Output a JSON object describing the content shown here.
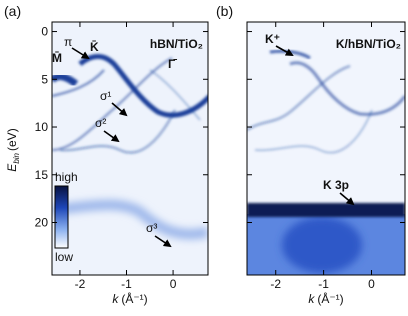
{
  "chart_data": [
    {
      "type": "heatmap",
      "panel_label": "(a)",
      "sample": "hBN/TiO₂",
      "xlim": [
        -2.6,
        0.75
      ],
      "ylim": [
        -1,
        25.5
      ],
      "y_inverted": true,
      "xticks": [
        -2,
        -1,
        0
      ],
      "yticks": [
        0,
        5,
        10,
        15,
        20
      ],
      "show_ytick_labels": true,
      "xlabel": {
        "main": "k",
        "unit": "(Å⁻¹)"
      },
      "ylabel": {
        "main": "E",
        "sub": "bin",
        "unit": "(eV)"
      },
      "annotations": [
        "M̄",
        "π",
        "K̄",
        "Γ̄",
        "σ¹",
        "σ²",
        "σ³"
      ],
      "colorbar": {
        "high": "high",
        "low": "low"
      }
    },
    {
      "type": "heatmap",
      "panel_label": "(b)",
      "sample": "K/hBN/TiO₂",
      "xlim": [
        -2.6,
        0.7
      ],
      "ylim": [
        -1,
        25.5
      ],
      "y_inverted": true,
      "xticks": [
        -2,
        -1,
        0
      ],
      "yticks": [
        0,
        5,
        10,
        15,
        20
      ],
      "show_ytick_labels": false,
      "xlabel": {
        "main": "k",
        "unit": "(Å⁻¹)"
      },
      "annotations": [
        "K⁺",
        "K 3p"
      ]
    }
  ]
}
